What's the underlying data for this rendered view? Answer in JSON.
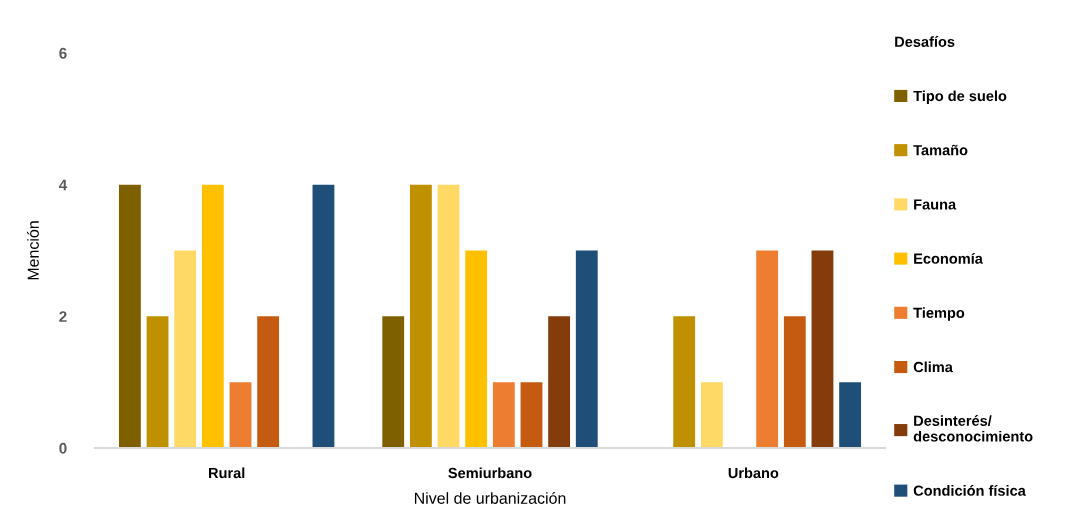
{
  "chart_data": {
    "type": "bar",
    "categories": [
      "Rural",
      "Semiurbano",
      "Urbano"
    ],
    "xlabel": "Nivel de urbanización",
    "ylabel": "Mención",
    "legend_title": "Desafíos",
    "ylim": [
      0,
      6
    ],
    "yticks": [
      0,
      2,
      4,
      6
    ],
    "grid": false,
    "legend": "right",
    "series": [
      {
        "name": "Tipo de suelo",
        "color": "#7f6000",
        "values": [
          4,
          2,
          null
        ]
      },
      {
        "name": "Tamaño",
        "color": "#bf9000",
        "values": [
          2,
          4,
          2
        ]
      },
      {
        "name": "Fauna",
        "color": "#ffd966",
        "values": [
          3,
          4,
          1
        ]
      },
      {
        "name": "Economía",
        "color": "#ffc000",
        "values": [
          4,
          3,
          null
        ]
      },
      {
        "name": "Tiempo",
        "color": "#ed7d31",
        "values": [
          1,
          1,
          3
        ]
      },
      {
        "name": "Clima",
        "color": "#c55a11",
        "values": [
          2,
          1,
          2
        ]
      },
      {
        "name": "Desinterés/ desconocimiento",
        "color": "#843c0c",
        "values": [
          null,
          2,
          3
        ]
      },
      {
        "name": "Condición física",
        "color": "#1f4e79",
        "values": [
          4,
          3,
          1
        ]
      }
    ]
  }
}
